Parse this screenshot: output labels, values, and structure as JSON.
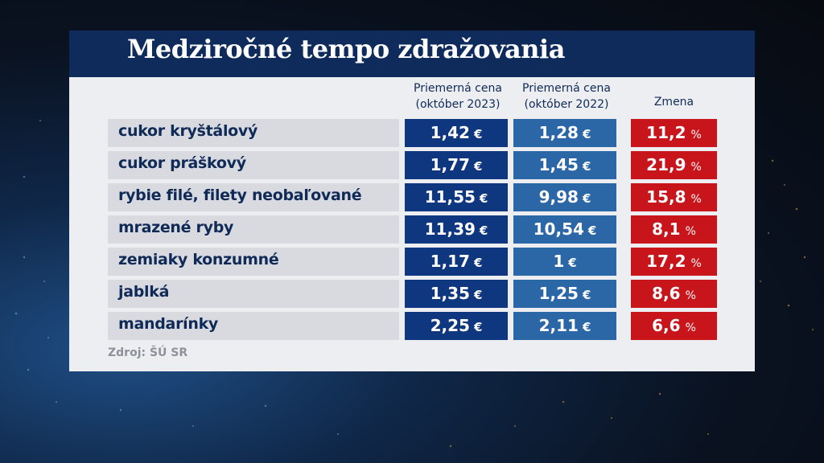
{
  "title": "Medziročné tempo zdražovania",
  "columns": {
    "price_2023": [
      "Priemerná cena",
      "(október 2023)"
    ],
    "price_2022": [
      "Priemerná cena",
      "(október 2022)"
    ],
    "change": "Zmena"
  },
  "rows": [
    {
      "label": "cukor kryštálový",
      "price_2023": "1,42",
      "price_2022": "1,28",
      "change": "11,2"
    },
    {
      "label": "cukor práškový",
      "price_2023": "1,77",
      "price_2022": "1,45",
      "change": "21,9"
    },
    {
      "label": "rybie filé, filety neobaľované",
      "price_2023": "11,55",
      "price_2022": "9,98",
      "change": "15,8"
    },
    {
      "label": "mrazené ryby",
      "price_2023": "11,39",
      "price_2022": "10,54",
      "change": "8,1"
    },
    {
      "label": "zemiaky konzumné",
      "price_2023": "1,17",
      "price_2022": "1",
      "change": "17,2"
    },
    {
      "label": "jablká",
      "price_2023": "1,35",
      "price_2022": "1,25",
      "change": "8,6"
    },
    {
      "label": "mandarínky",
      "price_2023": "2,25",
      "price_2022": "2,11",
      "change": "6,6"
    }
  ],
  "currency_symbol": "€",
  "percent_symbol": "%",
  "source": "Zdroj: ŠÚ SR",
  "colors": {
    "title_bar": "#0e2b5c",
    "price_2023": "#0f3780",
    "price_2022": "#2b67a6",
    "change": "#c8141b",
    "label_bg": "#d8dadf"
  }
}
